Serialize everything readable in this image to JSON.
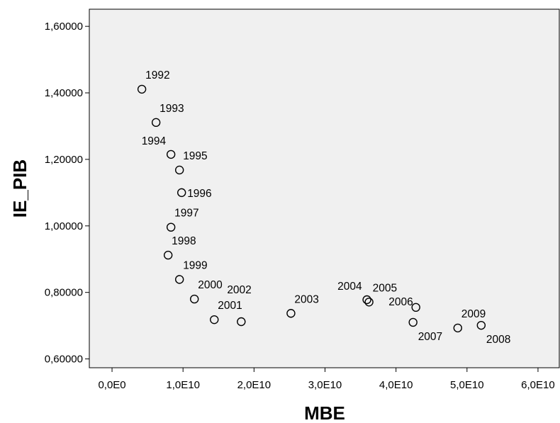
{
  "chart_data": {
    "type": "scatter",
    "title": "",
    "xlabel": "MBE",
    "ylabel": "IE_PIB",
    "xlim": [
      -3200000000.0,
      63000000000.0
    ],
    "ylim": [
      0.5735,
      1.6515
    ],
    "x_ticks": [
      {
        "value": 0,
        "label": "0,0E0"
      },
      {
        "value": 10000000000.0,
        "label": "1,0E10"
      },
      {
        "value": 20000000000.0,
        "label": "2,0E10"
      },
      {
        "value": 30000000000.0,
        "label": "3,0E10"
      },
      {
        "value": 40000000000.0,
        "label": "4,0E10"
      },
      {
        "value": 50000000000.0,
        "label": "5,0E10"
      },
      {
        "value": 60000000000.0,
        "label": "6,0E10"
      }
    ],
    "y_ticks": [
      {
        "value": 0.6,
        "label": "0,60000"
      },
      {
        "value": 0.8,
        "label": "0,80000"
      },
      {
        "value": 1.0,
        "label": "1,00000"
      },
      {
        "value": 1.2,
        "label": "1,20000"
      },
      {
        "value": 1.4,
        "label": "1,40000"
      },
      {
        "value": 1.6,
        "label": "1,60000"
      }
    ],
    "grid": false,
    "background": "#f0f0f0",
    "points": [
      {
        "label": "1992",
        "x": 4200000000.0,
        "y": 1.411,
        "label_pos": "above-right"
      },
      {
        "label": "1993",
        "x": 6200000000.0,
        "y": 1.311,
        "label_pos": "above-right"
      },
      {
        "label": "1994",
        "x": 8300000000.0,
        "y": 1.215,
        "label_pos": "above-left"
      },
      {
        "label": "1995",
        "x": 9500000000.0,
        "y": 1.168,
        "label_pos": "above-right"
      },
      {
        "label": "1996",
        "x": 9800000000.0,
        "y": 1.1,
        "label_pos": "right"
      },
      {
        "label": "1997",
        "x": 8300000000.0,
        "y": 0.996,
        "label_pos": "above-right"
      },
      {
        "label": "1998",
        "x": 7900000000.0,
        "y": 0.912,
        "label_pos": "above-right"
      },
      {
        "label": "1999",
        "x": 9500000000.0,
        "y": 0.839,
        "label_pos": "above-right"
      },
      {
        "label": "2000",
        "x": 11600000000.0,
        "y": 0.78,
        "label_pos": "above-right"
      },
      {
        "label": "2001",
        "x": 14400000000.0,
        "y": 0.718,
        "label_pos": "above-right"
      },
      {
        "label": "2002",
        "x": 18200000000.0,
        "y": 0.712,
        "label_pos": "above-far"
      },
      {
        "label": "2003",
        "x": 25200000000.0,
        "y": 0.737,
        "label_pos": "above-right"
      },
      {
        "label": "2004",
        "x": 35900000000.0,
        "y": 0.778,
        "label_pos": "above-left"
      },
      {
        "label": "2005",
        "x": 36200000000.0,
        "y": 0.771,
        "label_pos": "above-right"
      },
      {
        "label": "2006",
        "x": 42800000000.0,
        "y": 0.755,
        "label_pos": "left"
      },
      {
        "label": "2007",
        "x": 42400000000.0,
        "y": 0.71,
        "label_pos": "below-right"
      },
      {
        "label": "2008",
        "x": 52000000000.0,
        "y": 0.701,
        "label_pos": "below-right"
      },
      {
        "label": "2009",
        "x": 48700000000.0,
        "y": 0.693,
        "label_pos": "above-right"
      }
    ]
  }
}
